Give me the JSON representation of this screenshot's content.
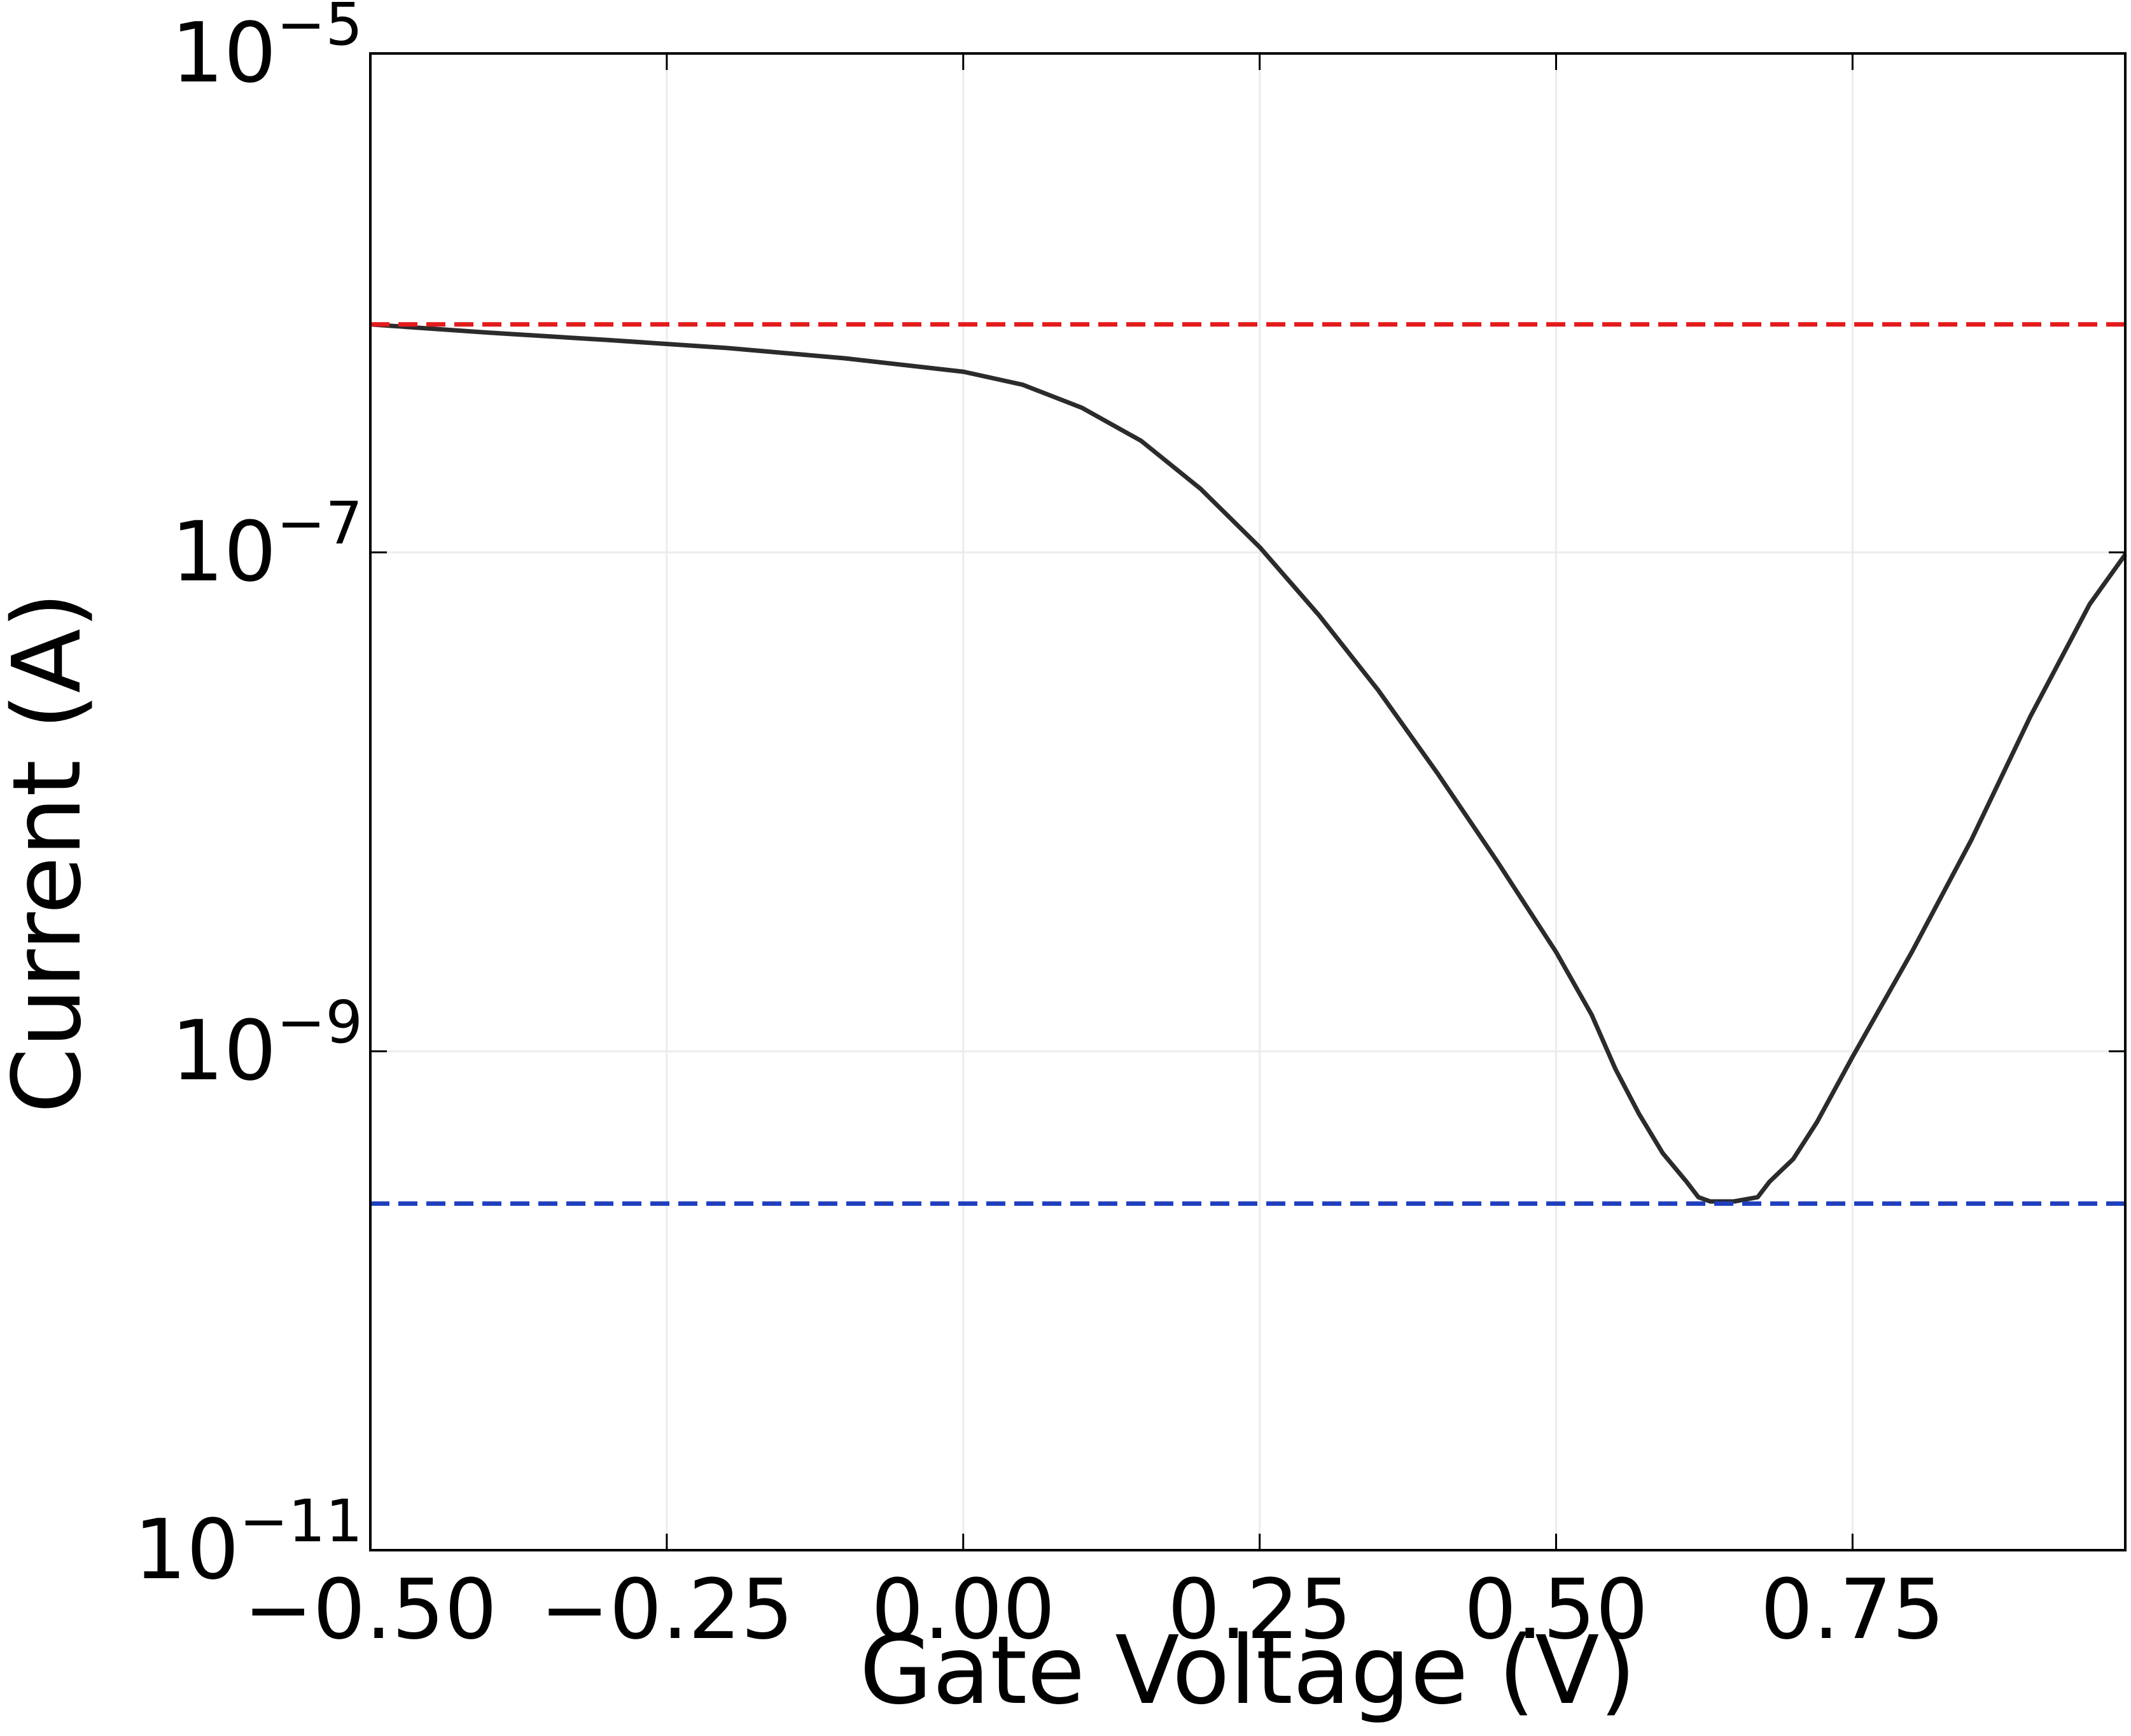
{
  "chart_data": {
    "type": "line",
    "title": "",
    "xlabel": "Gate Voltage (V)",
    "ylabel": "Current (A)",
    "xlim": [
      -0.5,
      0.98
    ],
    "ylim": [
      1e-11,
      1e-05
    ],
    "yscale": "log",
    "grid": true,
    "x_ticks": [
      {
        "value": -0.5,
        "label": "−0.50"
      },
      {
        "value": -0.25,
        "label": "−0.25"
      },
      {
        "value": 0.0,
        "label": "0.00"
      },
      {
        "value": 0.25,
        "label": "0.25"
      },
      {
        "value": 0.5,
        "label": "0.50"
      },
      {
        "value": 0.75,
        "label": "0.75"
      }
    ],
    "y_ticks": [
      {
        "value": 1e-05,
        "base": "10",
        "exp": "−5"
      },
      {
        "value": 1e-07,
        "base": "10",
        "exp": "−7"
      },
      {
        "value": 1e-09,
        "base": "10",
        "exp": "−9"
      },
      {
        "value": 1e-11,
        "base": "10",
        "exp": "−11"
      }
    ],
    "series": [
      {
        "color": "#2b2b2b",
        "style": "solid",
        "x": [
          -0.5,
          -0.4,
          -0.3,
          -0.2,
          -0.1,
          0.0,
          0.05,
          0.1,
          0.15,
          0.2,
          0.25,
          0.3,
          0.35,
          0.4,
          0.45,
          0.5,
          0.53,
          0.55,
          0.57,
          0.59,
          0.61,
          0.62,
          0.63,
          0.65,
          0.67,
          0.68,
          0.7,
          0.72,
          0.75,
          0.8,
          0.85,
          0.9,
          0.95,
          0.98
        ],
        "y": [
          8.2e-07,
          7.6e-07,
          7.1e-07,
          6.6e-07,
          6e-07,
          5.3e-07,
          4.7e-07,
          3.8e-07,
          2.8e-07,
          1.8e-07,
          1.05e-07,
          5.6e-08,
          2.8e-08,
          1.3e-08,
          5.8e-09,
          2.5e-09,
          1.4e-09,
          8.5e-10,
          5.6e-10,
          3.9e-10,
          3e-10,
          2.6e-10,
          2.5e-10,
          2.5e-10,
          2.6e-10,
          3e-10,
          3.7e-10,
          5.2e-10,
          9.5e-10,
          2.5e-09,
          7e-09,
          2.2e-08,
          6.2e-08,
          9.8e-08
        ]
      },
      {
        "color": "#e31a1c",
        "style": "dashed",
        "x": [
          -0.5,
          0.98
        ],
        "y": [
          8.2e-07,
          8.2e-07
        ]
      },
      {
        "color": "#1f3fbf",
        "style": "dashed",
        "x": [
          -0.5,
          0.98
        ],
        "y": [
          2.45e-10,
          2.45e-10
        ]
      }
    ]
  }
}
